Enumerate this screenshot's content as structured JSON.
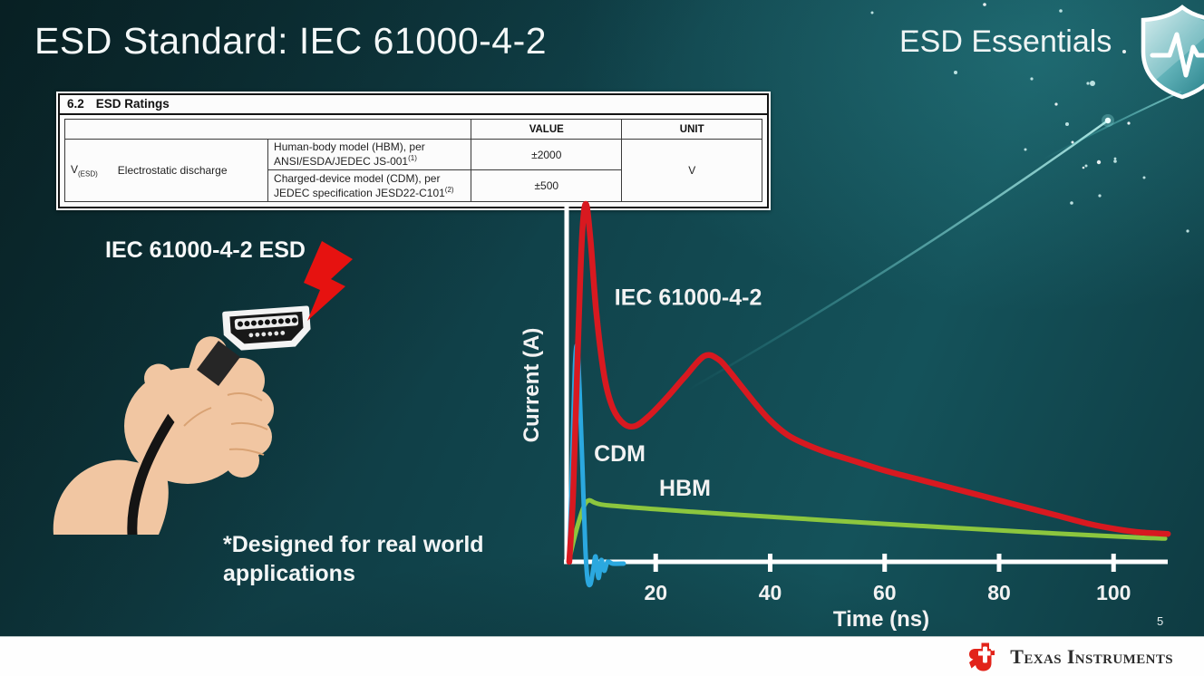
{
  "slide": {
    "title": "ESD Standard: IEC 61000-4-2",
    "program_title": "ESD Essentials",
    "page_number": "5",
    "illustration_label": "IEC 61000-4-2 ESD",
    "footnote": "*Designed for real world applications"
  },
  "ratings_table": {
    "section": "6.2",
    "section_title": "ESD Ratings",
    "col_value": "VALUE",
    "col_unit": "UNIT",
    "symbol": "V",
    "symbol_sub": "(ESD)",
    "parameter": "Electrostatic discharge",
    "rows": [
      {
        "description": "Human-body model (HBM), per ANSI/ESDA/JEDEC JS-001",
        "sup": "(1)",
        "value": "±2000"
      },
      {
        "description": "Charged-device model (CDM), per JEDEC specification JESD22-C101",
        "sup": "(2)",
        "value": "±500"
      }
    ],
    "unit": "V"
  },
  "footer": {
    "brand": "Texas Instruments",
    "brand_red": "#e2231a"
  },
  "icons": {
    "program_badge": "shield-pulse-icon",
    "strike": "lightning-bolt-icon",
    "connector": "hdmi-connector-icon",
    "brand_mark": "ti-logo"
  },
  "colors": {
    "background_teal": "#11454c",
    "slide_text": "#f4f8f8"
  },
  "chart_data": {
    "type": "line",
    "title": "",
    "xlabel": "Time (ns)",
    "ylabel": "Current (A)",
    "x_ticks": [
      20,
      40,
      60,
      80,
      100
    ],
    "y_ticks": [],
    "xlim": [
      0,
      110
    ],
    "ylim": [
      -0.12,
      1.02
    ],
    "grid": false,
    "legend_position": "inline-labels",
    "axis_color": "#ffffff",
    "series": [
      {
        "name": "IEC 61000-4-2",
        "color": "#d81920",
        "stroke_width": 6.5,
        "label_xy": [
          12.8,
          0.74
        ],
        "points": [
          [
            4.9,
            0
          ],
          [
            5.6,
            0.2
          ],
          [
            6.3,
            0.55
          ],
          [
            7.1,
            0.9
          ],
          [
            7.8,
            1.0
          ],
          [
            8.6,
            0.9
          ],
          [
            9.6,
            0.7
          ],
          [
            11,
            0.52
          ],
          [
            12.5,
            0.43
          ],
          [
            14.5,
            0.385
          ],
          [
            16.5,
            0.38
          ],
          [
            19,
            0.41
          ],
          [
            22,
            0.46
          ],
          [
            25,
            0.515
          ],
          [
            28.5,
            0.575
          ],
          [
            31,
            0.565
          ],
          [
            33,
            0.53
          ],
          [
            35,
            0.49
          ],
          [
            37.5,
            0.44
          ],
          [
            40,
            0.395
          ],
          [
            43,
            0.355
          ],
          [
            46,
            0.33
          ],
          [
            50,
            0.305
          ],
          [
            55,
            0.28
          ],
          [
            60,
            0.255
          ],
          [
            66,
            0.23
          ],
          [
            72,
            0.205
          ],
          [
            78,
            0.18
          ],
          [
            84,
            0.155
          ],
          [
            90,
            0.13
          ],
          [
            96,
            0.105
          ],
          [
            101,
            0.09
          ],
          [
            105,
            0.082
          ],
          [
            109.5,
            0.078
          ]
        ]
      },
      {
        "name": "CDM",
        "color": "#2ba8df",
        "stroke_width": 5,
        "label_xy": [
          9.2,
          0.304
        ],
        "points": [
          [
            4.9,
            0
          ],
          [
            5.4,
            0.28
          ],
          [
            5.9,
            0.55
          ],
          [
            6.3,
            0.6
          ],
          [
            6.7,
            0.48
          ],
          [
            7.2,
            0.26
          ],
          [
            7.7,
            0.04
          ],
          [
            8.1,
            -0.05
          ],
          [
            8.6,
            -0.062
          ],
          [
            9.1,
            -0.02
          ],
          [
            9.5,
            0.015
          ],
          [
            10,
            -0.045
          ],
          [
            10.5,
            0.005
          ],
          [
            11,
            -0.025
          ],
          [
            11.6,
            0
          ],
          [
            12.5,
            -0.005
          ],
          [
            14.4,
            -0.005
          ]
        ]
      },
      {
        "name": "HBM",
        "color": "#8cc63e",
        "stroke_width": 5,
        "label_xy": [
          20.6,
          0.208
        ],
        "points": [
          [
            4.8,
            0
          ],
          [
            5.6,
            0.055
          ],
          [
            6.6,
            0.115
          ],
          [
            7.6,
            0.16
          ],
          [
            8.4,
            0.172
          ],
          [
            9.2,
            0.166
          ],
          [
            10.5,
            0.16
          ],
          [
            13,
            0.156
          ],
          [
            16,
            0.152
          ],
          [
            20,
            0.147
          ],
          [
            30,
            0.136
          ],
          [
            40,
            0.126
          ],
          [
            50,
            0.116
          ],
          [
            60,
            0.106
          ],
          [
            70,
            0.097
          ],
          [
            80,
            0.088
          ],
          [
            90,
            0.079
          ],
          [
            98,
            0.073
          ],
          [
            104,
            0.068
          ],
          [
            109,
            0.065
          ]
        ]
      }
    ]
  }
}
